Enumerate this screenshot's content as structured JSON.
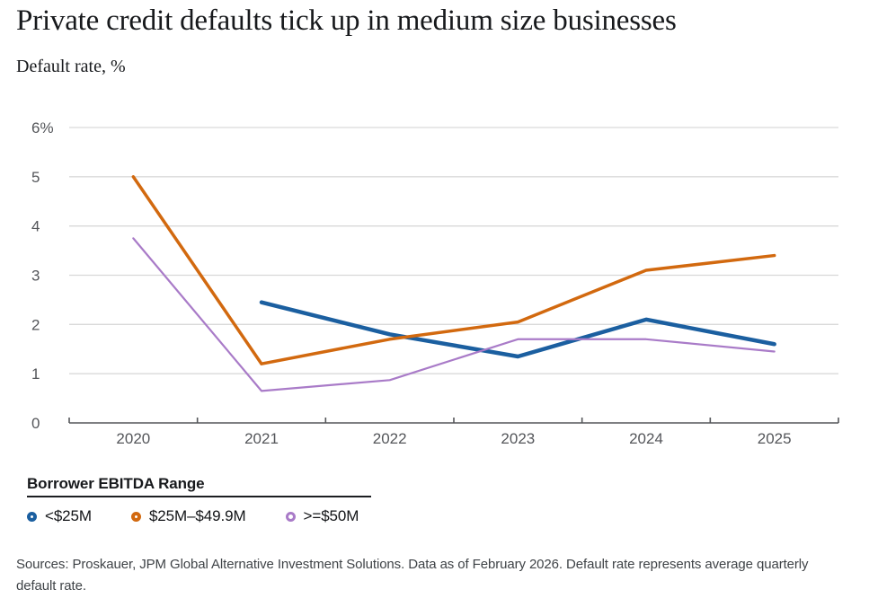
{
  "header": {
    "title": "Private credit defaults tick up in medium size businesses",
    "subtitle": "Default rate, %"
  },
  "chart_data": {
    "type": "line",
    "x_labels": [
      "2020",
      "2021",
      "2022",
      "2023",
      "2024",
      "2025"
    ],
    "ylim": [
      0,
      6
    ],
    "y_ticks": [
      0,
      1,
      2,
      3,
      4,
      5,
      6
    ],
    "y_tick_labels": [
      "0",
      "1",
      "2",
      "3",
      "4",
      "5",
      "6%"
    ],
    "grid": "horizontal gridlines at each whole percent, no vertical grid",
    "legend_position": "bottom-left",
    "legend_title": "Borrower EBITDA Range",
    "series": [
      {
        "name": "<$25M",
        "color": "#1b5fa0",
        "line_width": 4.5,
        "values": [
          null,
          2.45,
          1.8,
          1.35,
          2.1,
          1.6
        ]
      },
      {
        "name": "$25M–$49.9M",
        "color": "#d2690f",
        "line_width": 3.5,
        "values": [
          5.0,
          1.2,
          1.7,
          2.05,
          3.1,
          3.4
        ]
      },
      {
        "name": ">=$50M",
        "color": "#a97bc8",
        "line_width": 2.2,
        "values": [
          3.75,
          0.65,
          0.87,
          1.7,
          1.7,
          1.45
        ]
      }
    ],
    "colors": {
      "gridline": "#d9d9d9",
      "axis": "#55575a",
      "tick_label": "#54565a"
    }
  },
  "footer": {
    "source": "Sources: Proskauer, JPM Global Alternative Investment Solutions. Data as of February 2026. Default rate represents average quarterly default rate."
  }
}
